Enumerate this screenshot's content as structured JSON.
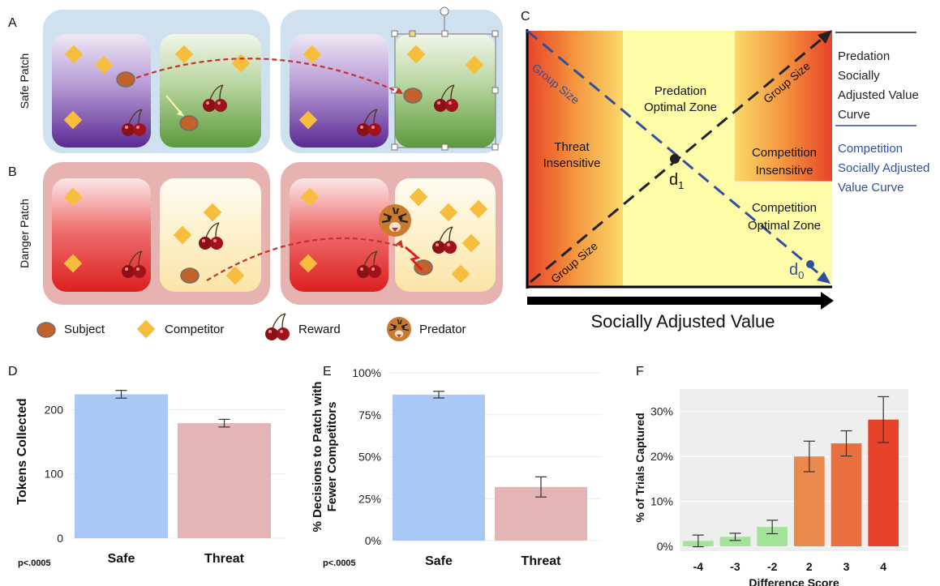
{
  "panel_labels": {
    "A": "A",
    "B": "B",
    "C": "C",
    "D": "D",
    "E": "E",
    "F": "F"
  },
  "panelA": {
    "row_label": "Safe Patch"
  },
  "panelB": {
    "row_label": "Danger Patch"
  },
  "legend": {
    "subject": "Subject",
    "competitor": "Competitor",
    "reward": "Reward",
    "predator": "Predator"
  },
  "panelC": {
    "xlabel": "Socially Adjusted Value",
    "zone_threat": [
      "Threat",
      "Insensitive"
    ],
    "zone_predation": [
      "Predation",
      "Optimal Zone"
    ],
    "zone_comp_insens": [
      "Competition",
      "Insensitive"
    ],
    "zone_comp_opt": [
      "Competition",
      "Optimal Zone"
    ],
    "group_size": "Group Size",
    "d1": "d",
    "d1_sub": "1",
    "d0": "d",
    "d0_sub": "0",
    "legend_predation": [
      "Predation",
      "Socially",
      "Adjusted Value",
      "Curve"
    ],
    "legend_competition": [
      "Competition",
      "Socially Adjusted",
      "Value Curve"
    ],
    "colors": {
      "predation_line": "#222222",
      "competition_line": "#2f4f9e",
      "threat_red": "#e8432a",
      "yellow": "#fffca8"
    }
  },
  "chart_data": [
    {
      "type": "bar",
      "panel": "D",
      "categories": [
        "Safe",
        "Threat"
      ],
      "values": [
        224,
        179
      ],
      "errors": [
        6,
        6
      ],
      "ylabel": "Tokens Collected",
      "ylim": [
        0,
        270
      ],
      "yticks": [
        "0",
        "100",
        "200"
      ],
      "colors": [
        "#a9c8f5",
        "#e5b4b4"
      ],
      "note": "p<.0005"
    },
    {
      "type": "bar",
      "panel": "E",
      "categories": [
        "Safe",
        "Threat"
      ],
      "values": [
        87,
        32
      ],
      "errors": [
        2,
        6
      ],
      "ylabel": [
        "% Decisions to Patch with",
        "Fewer Competitors"
      ],
      "ylim": [
        0,
        100
      ],
      "yticks": [
        "0%",
        "25%",
        "50%",
        "75%",
        "100%"
      ],
      "colors": [
        "#a9c8f5",
        "#e5b4b4"
      ],
      "note": "p<.0005"
    },
    {
      "type": "bar",
      "panel": "F",
      "categories": [
        "-4",
        "-3",
        "-2",
        "2",
        "3",
        "4"
      ],
      "values": [
        1.2,
        2.1,
        4.3,
        20.0,
        22.9,
        28.2
      ],
      "errors": [
        1.3,
        0.8,
        1.5,
        3.4,
        2.8,
        5.1
      ],
      "xlabel": "Difference Score",
      "ylabel": "% of Trials Captured",
      "ylim": [
        0,
        35
      ],
      "yticks": [
        "0%",
        "10%",
        "20%",
        "30%"
      ],
      "colors": [
        "#a3e39a",
        "#a3e39a",
        "#a3e39a",
        "#e98a4c",
        "#e96f3e",
        "#e8432a"
      ]
    }
  ]
}
